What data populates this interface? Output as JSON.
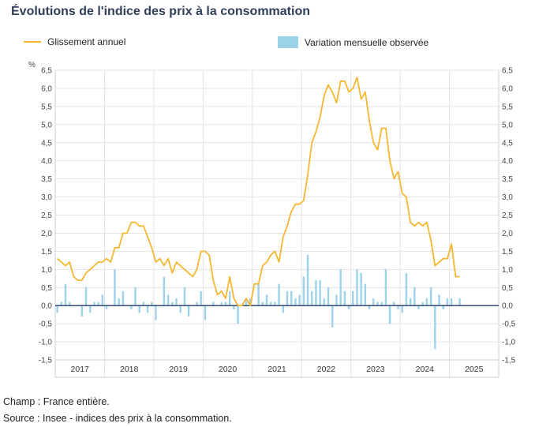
{
  "title": "Évolutions de l'indice des prix à la consommation",
  "footnotes": {
    "champ": "Champ : France entière.",
    "source": "Source : Insee - indices des prix à la consommation."
  },
  "colors": {
    "line": "#f5b731",
    "bars": "#9dd3ea",
    "zero": "#1f3a66",
    "grid": "#e3e3e3",
    "title": "#2f3e59"
  },
  "chart_data": {
    "type": "bar+line",
    "title": "Évolutions de l'indice des prix à la consommation",
    "ylabel": "%",
    "ylim": [
      -1.5,
      6.5
    ],
    "yticks": [
      "6,5",
      "6,0",
      "5,5",
      "5,0",
      "4,5",
      "4,0",
      "3,5",
      "3,0",
      "2,5",
      "2,0",
      "1,5",
      "1,0",
      "0,5",
      "0,0",
      "-0,5",
      "-1,0",
      "-1,5"
    ],
    "year_labels": [
      "2017",
      "2018",
      "2019",
      "2020",
      "2021",
      "2022",
      "2023",
      "2024",
      "2025"
    ],
    "legend_position": "top",
    "x_start": "2017-01",
    "series": [
      {
        "name": "Glissement annuel",
        "kind": "line",
        "values": [
          1.3,
          1.2,
          1.1,
          1.2,
          0.8,
          0.7,
          0.7,
          0.9,
          1.0,
          1.1,
          1.2,
          1.2,
          1.3,
          1.2,
          1.6,
          1.6,
          2.0,
          2.0,
          2.3,
          2.3,
          2.2,
          2.2,
          1.9,
          1.6,
          1.2,
          1.3,
          1.1,
          1.3,
          0.9,
          1.2,
          1.1,
          1.0,
          0.9,
          0.8,
          1.0,
          1.5,
          1.5,
          1.4,
          0.7,
          0.3,
          0.4,
          0.2,
          0.8,
          0.2,
          0.0,
          0.0,
          0.2,
          0.0,
          0.6,
          0.6,
          1.1,
          1.2,
          1.4,
          1.5,
          1.2,
          1.9,
          2.2,
          2.6,
          2.8,
          2.8,
          2.9,
          3.6,
          4.5,
          4.8,
          5.2,
          5.8,
          6.1,
          5.9,
          5.6,
          6.2,
          6.2,
          5.9,
          6.0,
          6.3,
          5.7,
          5.9,
          5.1,
          4.5,
          4.3,
          4.9,
          4.9,
          4.0,
          3.5,
          3.7,
          3.1,
          3.0,
          2.3,
          2.2,
          2.3,
          2.2,
          2.3,
          1.8,
          1.1,
          1.2,
          1.3,
          1.3,
          1.7,
          0.8,
          0.8
        ]
      },
      {
        "name": "Variation mensuelle observée",
        "kind": "bar",
        "values": [
          -0.2,
          0.1,
          0.6,
          0.1,
          0.0,
          0.0,
          -0.3,
          0.5,
          -0.2,
          0.1,
          0.1,
          0.3,
          -0.1,
          0.0,
          1.0,
          0.2,
          0.4,
          0.0,
          -0.1,
          0.5,
          -0.2,
          0.1,
          -0.2,
          0.1,
          -0.4,
          0.0,
          0.8,
          0.3,
          0.1,
          0.2,
          -0.2,
          0.5,
          -0.3,
          0.0,
          0.1,
          0.4,
          -0.4,
          0.0,
          0.1,
          0.0,
          0.1,
          0.1,
          0.4,
          -0.1,
          -0.5,
          0.0,
          0.2,
          0.2,
          0.0,
          0.6,
          0.1,
          0.3,
          0.1,
          0.1,
          0.6,
          -0.2,
          0.4,
          0.4,
          0.2,
          0.3,
          0.8,
          1.4,
          0.4,
          0.7,
          0.7,
          0.2,
          0.5,
          -0.6,
          0.3,
          1.0,
          0.4,
          -0.1,
          0.4,
          1.0,
          0.9,
          0.6,
          -0.1,
          0.2,
          0.1,
          0.1,
          1.0,
          -0.5,
          0.1,
          -0.1,
          -0.2,
          0.9,
          0.2,
          0.5,
          -0.1,
          0.1,
          0.2,
          0.5,
          -1.2,
          0.3,
          -0.1,
          0.2,
          0.2,
          0.0,
          0.2
        ]
      }
    ]
  }
}
